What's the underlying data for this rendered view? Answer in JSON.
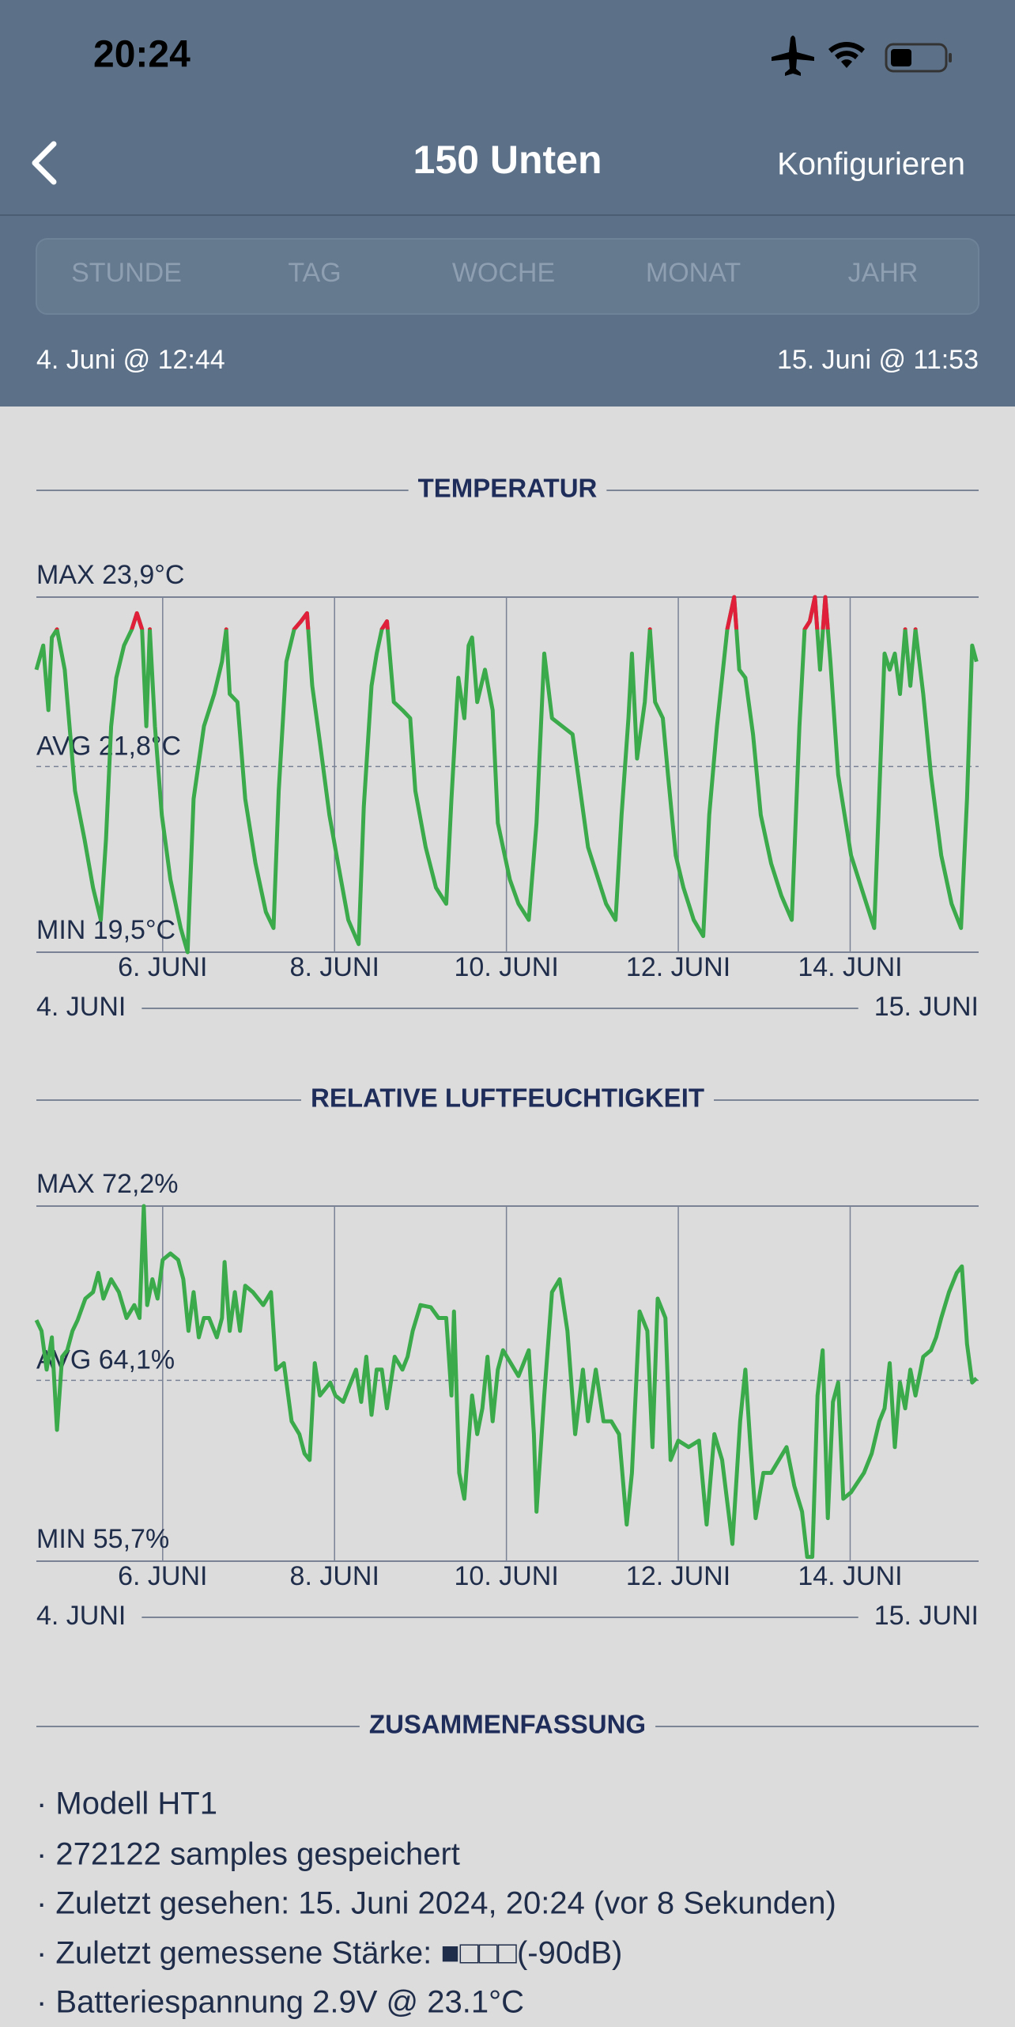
{
  "status_bar": {
    "time": "20:24"
  },
  "nav": {
    "title": "150 Unten",
    "action": "Konfigurieren"
  },
  "tabs": [
    "STUNDE",
    "TAG",
    "WOCHE",
    "MONAT",
    "JAHR"
  ],
  "date_range": {
    "start": "4. Juni @ 12:44",
    "end": "15. Juni @ 11:53"
  },
  "chart_data": [
    {
      "type": "line",
      "title": "TEMPERATUR",
      "color": "#3aaa4a",
      "alert_above": 23.5,
      "alert_color": "#e0203a",
      "max": {
        "value": 23.9,
        "label": "MAX 23,9°C"
      },
      "avg": {
        "value": 21.8,
        "label": "AVG 21,8°C"
      },
      "min": {
        "value": 19.5,
        "label": "MIN 19,5°C"
      },
      "xlim": [
        4.53,
        15.495
      ],
      "ylim": [
        19.5,
        23.9
      ],
      "grid": true,
      "xticks": [
        {
          "value": 6,
          "label": "6. JUNI"
        },
        {
          "value": 8,
          "label": "8. JUNI"
        },
        {
          "value": 10,
          "label": "10. JUNI"
        },
        {
          "value": 12,
          "label": "12. JUNI"
        },
        {
          "value": 14,
          "label": "14. JUNI"
        }
      ],
      "range_start": "4. JUNI",
      "range_end": "15. JUNI",
      "x": [
        4.53,
        4.61,
        4.67,
        4.71,
        4.77,
        4.86,
        4.98,
        5.09,
        5.19,
        5.28,
        5.34,
        5.4,
        5.46,
        5.55,
        5.64,
        5.7,
        5.76,
        5.81,
        5.85,
        5.91,
        5.99,
        6.09,
        6.21,
        6.29,
        6.36,
        6.48,
        6.6,
        6.69,
        6.74,
        6.78,
        6.87,
        6.96,
        7.08,
        7.2,
        7.29,
        7.35,
        7.44,
        7.53,
        7.61,
        7.68,
        7.74,
        7.83,
        7.94,
        8.04,
        8.16,
        8.28,
        8.34,
        8.43,
        8.49,
        8.55,
        8.61,
        8.69,
        8.79,
        8.88,
        8.94,
        9.06,
        9.18,
        9.3,
        9.36,
        9.44,
        9.51,
        9.56,
        9.6,
        9.66,
        9.75,
        9.84,
        9.9,
        10.04,
        10.14,
        10.26,
        10.35,
        10.44,
        10.53,
        10.65,
        10.77,
        10.86,
        10.95,
        11.04,
        11.16,
        11.27,
        11.34,
        11.42,
        11.46,
        11.52,
        11.61,
        11.67,
        11.73,
        11.82,
        11.88,
        11.97,
        12.06,
        12.18,
        12.29,
        12.36,
        12.45,
        12.57,
        12.65,
        12.71,
        12.78,
        12.87,
        12.96,
        13.08,
        13.2,
        13.32,
        13.41,
        13.47,
        13.53,
        13.59,
        13.65,
        13.71,
        13.77,
        13.86,
        14.01,
        14.13,
        14.28,
        14.4,
        14.46,
        14.52,
        14.58,
        14.64,
        14.7,
        14.76,
        14.85,
        14.94,
        15.06,
        15.18,
        15.29,
        15.36,
        15.42,
        15.47
      ],
      "values": [
        23.0,
        23.3,
        22.5,
        23.4,
        23.5,
        23.0,
        21.5,
        20.9,
        20.3,
        19.9,
        20.9,
        22.3,
        22.9,
        23.3,
        23.5,
        23.7,
        23.5,
        22.3,
        23.5,
        22.3,
        21.2,
        20.4,
        19.8,
        19.5,
        21.4,
        22.3,
        22.7,
        23.1,
        23.5,
        22.7,
        22.6,
        21.4,
        20.6,
        20.0,
        19.8,
        21.5,
        23.1,
        23.5,
        23.6,
        23.7,
        22.8,
        22.1,
        21.2,
        20.6,
        19.9,
        19.6,
        21.3,
        22.8,
        23.2,
        23.5,
        23.6,
        22.6,
        22.5,
        22.4,
        21.5,
        20.8,
        20.3,
        20.1,
        21.4,
        22.9,
        22.4,
        23.3,
        23.4,
        22.6,
        23.0,
        22.5,
        21.1,
        20.4,
        20.1,
        19.9,
        21.1,
        23.2,
        22.4,
        22.3,
        22.2,
        21.5,
        20.8,
        20.5,
        20.1,
        19.9,
        21.2,
        22.4,
        23.2,
        21.9,
        22.6,
        23.5,
        22.6,
        22.4,
        21.7,
        20.7,
        20.3,
        19.9,
        19.7,
        21.2,
        22.3,
        23.5,
        23.9,
        23.0,
        22.9,
        22.2,
        21.2,
        20.6,
        20.2,
        19.9,
        22.3,
        23.5,
        23.6,
        23.9,
        23.0,
        23.9,
        23.1,
        21.7,
        20.7,
        20.3,
        19.8,
        23.2,
        23.0,
        23.2,
        22.7,
        23.5,
        22.8,
        23.5,
        22.7,
        21.7,
        20.7,
        20.1,
        19.8,
        21.4,
        23.3,
        23.1
      ]
    },
    {
      "type": "line",
      "title": "RELATIVE LUFTFEUCHTIGKEIT",
      "color": "#3aaa4a",
      "max": {
        "value": 72.2,
        "label": "MAX 72,2%"
      },
      "avg": {
        "value": 64.1,
        "label": "AVG 64,1%"
      },
      "min": {
        "value": 55.7,
        "label": "MIN 55,7%"
      },
      "xlim": [
        4.53,
        15.495
      ],
      "ylim": [
        55.7,
        72.2
      ],
      "grid": true,
      "xticks": [
        {
          "value": 6,
          "label": "6. JUNI"
        },
        {
          "value": 8,
          "label": "8. JUNI"
        },
        {
          "value": 10,
          "label": "10. JUNI"
        },
        {
          "value": 12,
          "label": "12. JUNI"
        },
        {
          "value": 14,
          "label": "14. JUNI"
        }
      ],
      "range_start": "4. JUNI",
      "range_end": "15. JUNI",
      "x": [
        4.53,
        4.59,
        4.65,
        4.71,
        4.77,
        4.83,
        4.89,
        4.95,
        5.01,
        5.1,
        5.19,
        5.25,
        5.31,
        5.4,
        5.49,
        5.58,
        5.67,
        5.73,
        5.78,
        5.82,
        5.88,
        5.94,
        6.0,
        6.09,
        6.18,
        6.24,
        6.3,
        6.36,
        6.42,
        6.48,
        6.54,
        6.63,
        6.69,
        6.72,
        6.78,
        6.84,
        6.9,
        6.96,
        7.05,
        7.17,
        7.26,
        7.32,
        7.41,
        7.5,
        7.59,
        7.65,
        7.71,
        7.77,
        7.83,
        7.89,
        7.95,
        8.01,
        8.1,
        8.16,
        8.25,
        8.31,
        8.37,
        8.43,
        8.49,
        8.55,
        8.61,
        8.7,
        8.79,
        8.85,
        8.91,
        9.0,
        9.12,
        9.21,
        9.3,
        9.36,
        9.39,
        9.45,
        9.51,
        9.6,
        9.66,
        9.72,
        9.78,
        9.84,
        9.9,
        9.96,
        10.05,
        10.14,
        10.26,
        10.32,
        10.35,
        10.44,
        10.53,
        10.62,
        10.71,
        10.8,
        10.89,
        10.95,
        11.04,
        11.13,
        11.22,
        11.31,
        11.4,
        11.46,
        11.55,
        11.64,
        11.7,
        11.76,
        11.85,
        11.91,
        12.0,
        12.12,
        12.24,
        12.33,
        12.42,
        12.51,
        12.63,
        12.72,
        12.78,
        12.84,
        12.9,
        12.99,
        13.08,
        13.17,
        13.26,
        13.35,
        13.44,
        13.5,
        13.56,
        13.62,
        13.68,
        13.74,
        13.8,
        13.86,
        13.92,
        14.01,
        14.16,
        14.25,
        14.34,
        14.4,
        14.46,
        14.52,
        14.58,
        14.64,
        14.7,
        14.76,
        14.85,
        14.94,
        15.0,
        15.06,
        15.15,
        15.24,
        15.3,
        15.36,
        15.42,
        15.47
      ],
      "values": [
        66.9,
        66.4,
        64.6,
        66.1,
        61.8,
        65.2,
        65.5,
        66.4,
        66.9,
        67.9,
        68.2,
        69.1,
        67.9,
        68.8,
        68.2,
        67.0,
        67.6,
        67.0,
        72.2,
        67.6,
        68.8,
        67.9,
        69.7,
        70.0,
        69.7,
        68.8,
        66.4,
        68.2,
        66.1,
        67.0,
        67.0,
        66.1,
        67.0,
        69.6,
        66.4,
        68.2,
        66.4,
        68.5,
        68.2,
        67.6,
        68.2,
        64.6,
        64.9,
        62.2,
        61.6,
        60.7,
        60.4,
        64.9,
        63.4,
        63.7,
        64.0,
        63.4,
        63.1,
        63.7,
        64.6,
        63.1,
        65.2,
        62.5,
        64.6,
        64.6,
        62.8,
        65.2,
        64.6,
        65.2,
        66.4,
        67.6,
        67.5,
        67.0,
        67.0,
        63.4,
        67.3,
        59.8,
        58.6,
        63.4,
        61.6,
        62.8,
        65.2,
        62.2,
        64.6,
        65.5,
        64.9,
        64.3,
        65.5,
        61.6,
        58.0,
        63.4,
        68.2,
        68.8,
        66.4,
        61.6,
        64.6,
        62.2,
        64.6,
        62.2,
        62.2,
        61.6,
        57.4,
        59.8,
        67.3,
        66.4,
        61.0,
        67.9,
        67.0,
        60.4,
        61.3,
        61.0,
        61.3,
        57.4,
        61.6,
        60.4,
        56.5,
        62.2,
        64.6,
        61.0,
        57.7,
        59.8,
        59.8,
        60.4,
        61.0,
        59.2,
        58.0,
        55.9,
        55.9,
        63.4,
        65.5,
        57.7,
        63.1,
        64.0,
        58.6,
        58.9,
        59.8,
        60.7,
        62.2,
        62.8,
        64.9,
        61.0,
        64.0,
        62.8,
        64.6,
        63.4,
        65.2,
        65.5,
        66.1,
        67.0,
        68.2,
        69.1,
        69.4,
        65.8,
        64.0,
        64.2
      ]
    }
  ],
  "summary": {
    "title": "ZUSAMMENFASSUNG",
    "items": [
      "· Modell HT1",
      "· 272122 samples gespeichert",
      "· Zuletzt gesehen: 15. Juni 2024, 20:24 (vor 8 Sekunden)",
      "· Zuletzt gemessene Stärke:  ■□□□(-90dB)",
      "· Batteriespannung 2.9V @ 23.1°C"
    ]
  }
}
